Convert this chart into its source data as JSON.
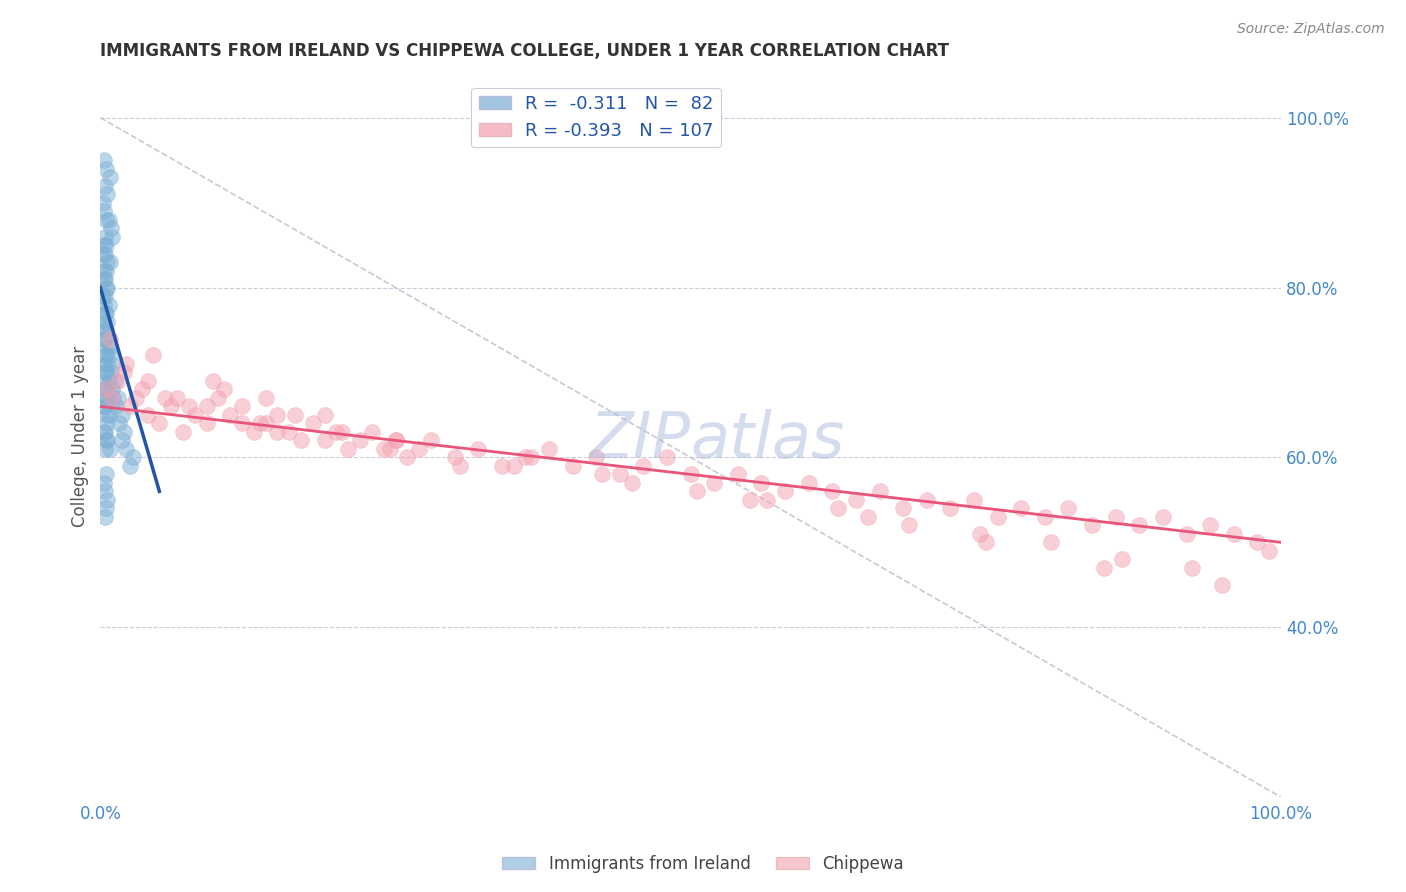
{
  "title": "IMMIGRANTS FROM IRELAND VS CHIPPEWA COLLEGE, UNDER 1 YEAR CORRELATION CHART",
  "source": "Source: ZipAtlas.com",
  "ylabel": "College, Under 1 year",
  "blue_color": "#7BAFD4",
  "pink_color": "#F4A0B0",
  "blue_line_color": "#2255AA",
  "pink_line_color": "#E8547A",
  "dashed_line_color": "#BBBBCC",
  "watermark_color": "#AABBDD",
  "background_color": "#FFFFFF",
  "grid_color": "#CCCCDD",
  "axis_label_color": "#4488CC",
  "title_color": "#333333",
  "xticklabels": [
    "0.0%",
    "100.0%"
  ],
  "yticklabels_right": [
    "40.0%",
    "60.0%",
    "80.0%",
    "100.0%"
  ],
  "ytick_positions_right": [
    40,
    60,
    80,
    100
  ],
  "blue_scatter_x": [
    0.3,
    0.5,
    0.8,
    0.4,
    0.6,
    0.2,
    0.3,
    0.5,
    0.7,
    0.9,
    1.0,
    0.4,
    0.3,
    0.5,
    0.2,
    0.4,
    0.6,
    0.8,
    0.3,
    0.5,
    0.4,
    0.3,
    0.6,
    0.5,
    0.2,
    0.4,
    0.3,
    0.7,
    0.5,
    0.4,
    0.6,
    0.3,
    0.5,
    0.2,
    0.4,
    0.3,
    0.8,
    0.6,
    0.5,
    0.4,
    0.3,
    0.6,
    0.4,
    0.5,
    0.7,
    0.3,
    0.4,
    0.5,
    0.6,
    0.2,
    0.4,
    0.3,
    0.5,
    0.7,
    0.6,
    0.4,
    0.3,
    0.5,
    0.6,
    0.4,
    0.8,
    1.2,
    1.5,
    1.8,
    2.0,
    2.2,
    1.0,
    1.3,
    1.6,
    1.1,
    0.9,
    2.5,
    1.8,
    2.8,
    0.5,
    0.3,
    0.4,
    0.6,
    0.5,
    0.4,
    0.8,
    1.0
  ],
  "blue_scatter_y": [
    95,
    94,
    93,
    92,
    91,
    90,
    89,
    88,
    88,
    87,
    86,
    86,
    85,
    85,
    84,
    84,
    83,
    83,
    82,
    82,
    81,
    81,
    80,
    80,
    79,
    79,
    78,
    78,
    77,
    77,
    76,
    76,
    75,
    75,
    74,
    74,
    73,
    73,
    72,
    72,
    71,
    71,
    70,
    70,
    69,
    69,
    68,
    68,
    67,
    67,
    66,
    66,
    65,
    65,
    64,
    63,
    63,
    62,
    62,
    61,
    61,
    69,
    67,
    65,
    63,
    61,
    68,
    66,
    64,
    67,
    70,
    59,
    62,
    60,
    58,
    57,
    56,
    55,
    54,
    53,
    72,
    71
  ],
  "pink_scatter_x": [
    0.5,
    1.0,
    1.5,
    2.5,
    3.0,
    4.0,
    5.0,
    6.0,
    7.0,
    8.0,
    9.0,
    10.0,
    11.0,
    12.0,
    13.0,
    14.0,
    15.0,
    16.0,
    17.0,
    18.0,
    19.0,
    20.0,
    21.0,
    22.0,
    23.0,
    24.0,
    25.0,
    26.0,
    27.0,
    28.0,
    30.0,
    32.0,
    34.0,
    36.0,
    38.0,
    40.0,
    42.0,
    44.0,
    46.0,
    48.0,
    50.0,
    52.0,
    54.0,
    56.0,
    58.0,
    60.0,
    62.0,
    64.0,
    66.0,
    68.0,
    70.0,
    72.0,
    74.0,
    76.0,
    78.0,
    80.0,
    82.0,
    84.0,
    86.0,
    88.0,
    90.0,
    92.0,
    94.0,
    96.0,
    98.0,
    99.0,
    2.0,
    3.5,
    5.5,
    7.5,
    10.5,
    13.5,
    16.5,
    20.5,
    24.5,
    30.5,
    36.5,
    42.5,
    50.5,
    56.5,
    62.5,
    68.5,
    74.5,
    80.5,
    86.5,
    92.5,
    4.5,
    9.5,
    14.0,
    19.0,
    25.0,
    35.0,
    45.0,
    55.0,
    65.0,
    75.0,
    85.0,
    95.0,
    0.8,
    2.2,
    4.0,
    6.5,
    9.0,
    12.0,
    15.0
  ],
  "pink_scatter_y": [
    68,
    67,
    69,
    66,
    67,
    65,
    64,
    66,
    63,
    65,
    64,
    67,
    65,
    66,
    63,
    64,
    65,
    63,
    62,
    64,
    62,
    63,
    61,
    62,
    63,
    61,
    62,
    60,
    61,
    62,
    60,
    61,
    59,
    60,
    61,
    59,
    60,
    58,
    59,
    60,
    58,
    57,
    58,
    57,
    56,
    57,
    56,
    55,
    56,
    54,
    55,
    54,
    55,
    53,
    54,
    53,
    54,
    52,
    53,
    52,
    53,
    51,
    52,
    51,
    50,
    49,
    70,
    68,
    67,
    66,
    68,
    64,
    65,
    63,
    61,
    59,
    60,
    58,
    56,
    55,
    54,
    52,
    51,
    50,
    48,
    47,
    72,
    69,
    67,
    65,
    62,
    59,
    57,
    55,
    53,
    50,
    47,
    45,
    74,
    71,
    69,
    67,
    66,
    64,
    63
  ],
  "xlim": [
    0,
    100
  ],
  "ylim": [
    20,
    105
  ],
  "blue_line_x0": 0,
  "blue_line_x1": 5,
  "blue_line_y0": 80,
  "blue_line_y1": 56,
  "pink_line_x0": 0,
  "pink_line_x1": 100,
  "pink_line_y0": 66,
  "pink_line_y1": 50,
  "dash_line_x0": 0,
  "dash_line_x1": 100,
  "dash_line_y0": 100,
  "dash_line_y1": 20
}
